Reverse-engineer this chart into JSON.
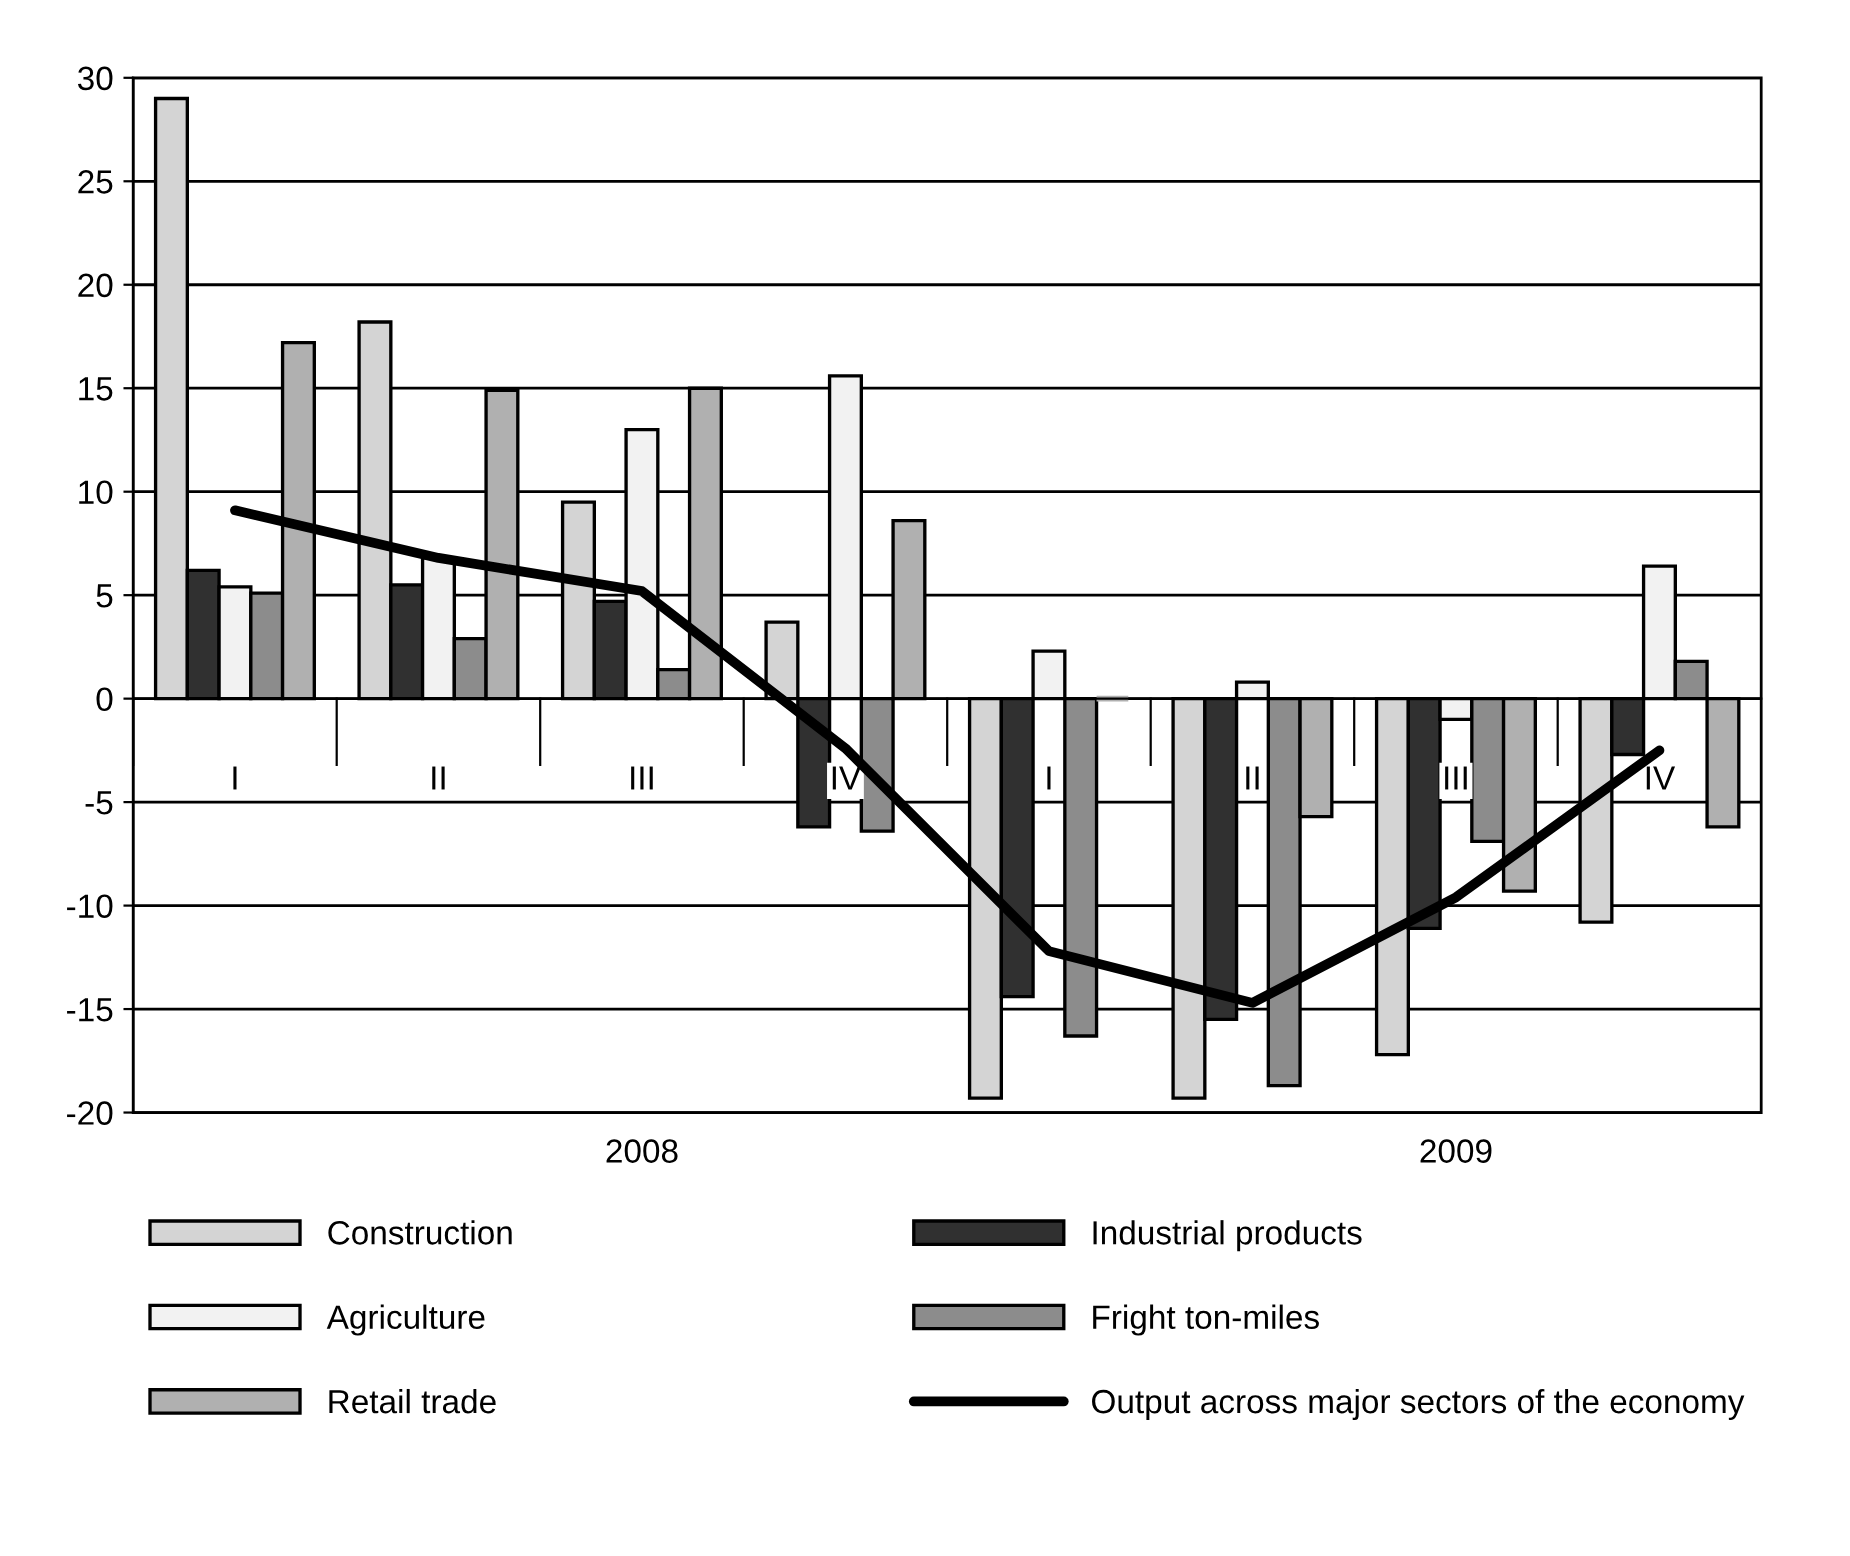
{
  "chart_data": {
    "type": "bar",
    "categories": [
      "I",
      "II",
      "III",
      "IV",
      "I",
      "II",
      "III",
      "IV"
    ],
    "series": [
      {
        "name": "Construction",
        "color": "#d4d4d4",
        "values": [
          29,
          18.2,
          9.5,
          3.7,
          -19.3,
          -19.3,
          -17.2,
          -10.8
        ]
      },
      {
        "name": "Industrial products",
        "color": "#303030",
        "values": [
          6.2,
          5.5,
          4.7,
          -6.2,
          -14.4,
          -15.5,
          -11.1,
          -2.7
        ]
      },
      {
        "name": "Agriculture",
        "color": "#f2f2f2",
        "values": [
          5.4,
          6.8,
          13,
          15.6,
          2.3,
          0.8,
          -1,
          6.4
        ]
      },
      {
        "name": "Fright ton-miles",
        "color": "#8c8c8c",
        "values": [
          5.1,
          2.9,
          1.4,
          -6.4,
          -16.3,
          -18.7,
          -6.9,
          1.8
        ]
      },
      {
        "name": "Retail trade",
        "color": "#b0b0b0",
        "values": [
          17.2,
          14.9,
          15,
          8.6,
          0,
          -5.7,
          -9.3,
          -6.2
        ]
      },
      {
        "name": "Output across major sectors of the economy",
        "type": "line",
        "color": "#000000",
        "values": [
          9.1,
          6.8,
          5.2,
          -2.4,
          -12.2,
          -14.7,
          -9.6,
          -2.5
        ]
      }
    ],
    "annotations": [
      "2008",
      "2009"
    ],
    "ylim": [
      -20,
      30
    ],
    "yticks": [
      -20,
      -15,
      -10,
      -5,
      0,
      5,
      10,
      15,
      20,
      25,
      30
    ],
    "grid": "y",
    "legend": "bottom",
    "marker": "none",
    "line_style": "solid"
  }
}
